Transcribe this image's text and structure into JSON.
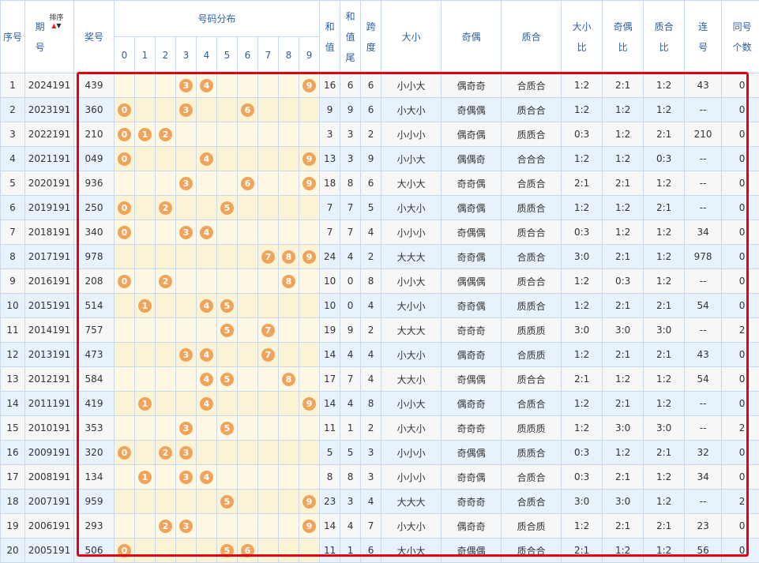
{
  "headers": {
    "seq": "序号",
    "period_line1": "期",
    "period_line2": "号",
    "sort": "排序",
    "prize": "奖号",
    "distribution": "号码分布",
    "digits": [
      "0",
      "1",
      "2",
      "3",
      "4",
      "5",
      "6",
      "7",
      "8",
      "9"
    ],
    "sum_line1": "和",
    "sum_line2": "值",
    "tail_line1": "和",
    "tail_line2": "值",
    "tail_line3": "尾",
    "span_line1": "跨",
    "span_line2": "度",
    "bigsmall": "大小",
    "oddeven": "奇偶",
    "primecomp": "质合",
    "bs_ratio_1": "大小",
    "bs_ratio_2": "比",
    "oe_ratio_1": "奇偶",
    "oe_ratio_2": "比",
    "pc_ratio_1": "质合",
    "pc_ratio_2": "比",
    "consec_1": "连",
    "consec_2": "号",
    "same_1": "同号",
    "same_2": "个数"
  },
  "highlight_color": "#e60012",
  "ball_color": "#f0a35b",
  "rows": [
    {
      "seq": "1",
      "period": "2024191",
      "prize": "439",
      "balls": [
        "3",
        "4",
        "9"
      ],
      "sum": "16",
      "tail": "6",
      "span": "6",
      "bs": "小小大",
      "oe": "偶奇奇",
      "pc": "合质合",
      "bsr": "1:2",
      "oer": "2:1",
      "pcr": "1:2",
      "consec": "43",
      "same": "0"
    },
    {
      "seq": "2",
      "period": "2023191",
      "prize": "360",
      "balls": [
        "0",
        "3",
        "6"
      ],
      "sum": "9",
      "tail": "9",
      "span": "6",
      "bs": "小大小",
      "oe": "奇偶偶",
      "pc": "质合合",
      "bsr": "1:2",
      "oer": "1:2",
      "pcr": "1:2",
      "consec": "--",
      "same": "0"
    },
    {
      "seq": "3",
      "period": "2022191",
      "prize": "210",
      "balls": [
        "0",
        "1",
        "2"
      ],
      "sum": "3",
      "tail": "3",
      "span": "2",
      "bs": "小小小",
      "oe": "偶奇偶",
      "pc": "质质合",
      "bsr": "0:3",
      "oer": "1:2",
      "pcr": "2:1",
      "consec": "210",
      "same": "0"
    },
    {
      "seq": "4",
      "period": "2021191",
      "prize": "049",
      "balls": [
        "0",
        "4",
        "9"
      ],
      "sum": "13",
      "tail": "3",
      "span": "9",
      "bs": "小小大",
      "oe": "偶偶奇",
      "pc": "合合合",
      "bsr": "1:2",
      "oer": "1:2",
      "pcr": "0:3",
      "consec": "--",
      "same": "0"
    },
    {
      "seq": "5",
      "period": "2020191",
      "prize": "936",
      "balls": [
        "3",
        "6",
        "9"
      ],
      "sum": "18",
      "tail": "8",
      "span": "6",
      "bs": "大小大",
      "oe": "奇奇偶",
      "pc": "合质合",
      "bsr": "2:1",
      "oer": "2:1",
      "pcr": "1:2",
      "consec": "--",
      "same": "0"
    },
    {
      "seq": "6",
      "period": "2019191",
      "prize": "250",
      "balls": [
        "0",
        "2",
        "5"
      ],
      "sum": "7",
      "tail": "7",
      "span": "5",
      "bs": "小大小",
      "oe": "偶奇偶",
      "pc": "质质合",
      "bsr": "1:2",
      "oer": "1:2",
      "pcr": "2:1",
      "consec": "--",
      "same": "0"
    },
    {
      "seq": "7",
      "period": "2018191",
      "prize": "340",
      "balls": [
        "0",
        "3",
        "4"
      ],
      "sum": "7",
      "tail": "7",
      "span": "4",
      "bs": "小小小",
      "oe": "奇偶偶",
      "pc": "质合合",
      "bsr": "0:3",
      "oer": "1:2",
      "pcr": "1:2",
      "consec": "34",
      "same": "0"
    },
    {
      "seq": "8",
      "period": "2017191",
      "prize": "978",
      "balls": [
        "7",
        "8",
        "9"
      ],
      "sum": "24",
      "tail": "4",
      "span": "2",
      "bs": "大大大",
      "oe": "奇奇偶",
      "pc": "合质合",
      "bsr": "3:0",
      "oer": "2:1",
      "pcr": "1:2",
      "consec": "978",
      "same": "0"
    },
    {
      "seq": "9",
      "period": "2016191",
      "prize": "208",
      "balls": [
        "0",
        "2",
        "8"
      ],
      "sum": "10",
      "tail": "0",
      "span": "8",
      "bs": "小小大",
      "oe": "偶偶偶",
      "pc": "质合合",
      "bsr": "1:2",
      "oer": "0:3",
      "pcr": "1:2",
      "consec": "--",
      "same": "0"
    },
    {
      "seq": "10",
      "period": "2015191",
      "prize": "514",
      "balls": [
        "1",
        "4",
        "5"
      ],
      "sum": "10",
      "tail": "0",
      "span": "4",
      "bs": "大小小",
      "oe": "奇奇偶",
      "pc": "质质合",
      "bsr": "1:2",
      "oer": "2:1",
      "pcr": "2:1",
      "consec": "54",
      "same": "0"
    },
    {
      "seq": "11",
      "period": "2014191",
      "prize": "757",
      "balls": [
        "5",
        "7"
      ],
      "sum": "19",
      "tail": "9",
      "span": "2",
      "bs": "大大大",
      "oe": "奇奇奇",
      "pc": "质质质",
      "bsr": "3:0",
      "oer": "3:0",
      "pcr": "3:0",
      "consec": "--",
      "same": "2"
    },
    {
      "seq": "12",
      "period": "2013191",
      "prize": "473",
      "balls": [
        "3",
        "4",
        "7"
      ],
      "sum": "14",
      "tail": "4",
      "span": "4",
      "bs": "小大小",
      "oe": "偶奇奇",
      "pc": "合质质",
      "bsr": "1:2",
      "oer": "2:1",
      "pcr": "2:1",
      "consec": "43",
      "same": "0"
    },
    {
      "seq": "13",
      "period": "2012191",
      "prize": "584",
      "balls": [
        "4",
        "5",
        "8"
      ],
      "sum": "17",
      "tail": "7",
      "span": "4",
      "bs": "大大小",
      "oe": "奇偶偶",
      "pc": "质合合",
      "bsr": "2:1",
      "oer": "1:2",
      "pcr": "1:2",
      "consec": "54",
      "same": "0"
    },
    {
      "seq": "14",
      "period": "2011191",
      "prize": "419",
      "balls": [
        "1",
        "4",
        "9"
      ],
      "sum": "14",
      "tail": "4",
      "span": "8",
      "bs": "小小大",
      "oe": "偶奇奇",
      "pc": "合质合",
      "bsr": "1:2",
      "oer": "2:1",
      "pcr": "1:2",
      "consec": "--",
      "same": "0"
    },
    {
      "seq": "15",
      "period": "2010191",
      "prize": "353",
      "balls": [
        "3",
        "5"
      ],
      "sum": "11",
      "tail": "1",
      "span": "2",
      "bs": "小大小",
      "oe": "奇奇奇",
      "pc": "质质质",
      "bsr": "1:2",
      "oer": "3:0",
      "pcr": "3:0",
      "consec": "--",
      "same": "2"
    },
    {
      "seq": "16",
      "period": "2009191",
      "prize": "320",
      "balls": [
        "0",
        "2",
        "3"
      ],
      "sum": "5",
      "tail": "5",
      "span": "3",
      "bs": "小小小",
      "oe": "奇偶偶",
      "pc": "质质合",
      "bsr": "0:3",
      "oer": "1:2",
      "pcr": "2:1",
      "consec": "32",
      "same": "0"
    },
    {
      "seq": "17",
      "period": "2008191",
      "prize": "134",
      "balls": [
        "1",
        "3",
        "4"
      ],
      "sum": "8",
      "tail": "8",
      "span": "3",
      "bs": "小小小",
      "oe": "奇奇偶",
      "pc": "合质合",
      "bsr": "0:3",
      "oer": "2:1",
      "pcr": "1:2",
      "consec": "34",
      "same": "0"
    },
    {
      "seq": "18",
      "period": "2007191",
      "prize": "959",
      "balls": [
        "5",
        "9"
      ],
      "sum": "23",
      "tail": "3",
      "span": "4",
      "bs": "大大大",
      "oe": "奇奇奇",
      "pc": "合质合",
      "bsr": "3:0",
      "oer": "3:0",
      "pcr": "1:2",
      "consec": "--",
      "same": "2"
    },
    {
      "seq": "19",
      "period": "2006191",
      "prize": "293",
      "balls": [
        "2",
        "3",
        "9"
      ],
      "sum": "14",
      "tail": "4",
      "span": "7",
      "bs": "小大小",
      "oe": "偶奇奇",
      "pc": "质合质",
      "bsr": "1:2",
      "oer": "2:1",
      "pcr": "2:1",
      "consec": "23",
      "same": "0"
    },
    {
      "seq": "20",
      "period": "2005191",
      "prize": "506",
      "balls": [
        "0",
        "5",
        "6"
      ],
      "sum": "11",
      "tail": "1",
      "span": "6",
      "bs": "大小大",
      "oe": "奇偶偶",
      "pc": "质合合",
      "bsr": "2:1",
      "oer": "1:2",
      "pcr": "1:2",
      "consec": "56",
      "same": "0"
    }
  ]
}
